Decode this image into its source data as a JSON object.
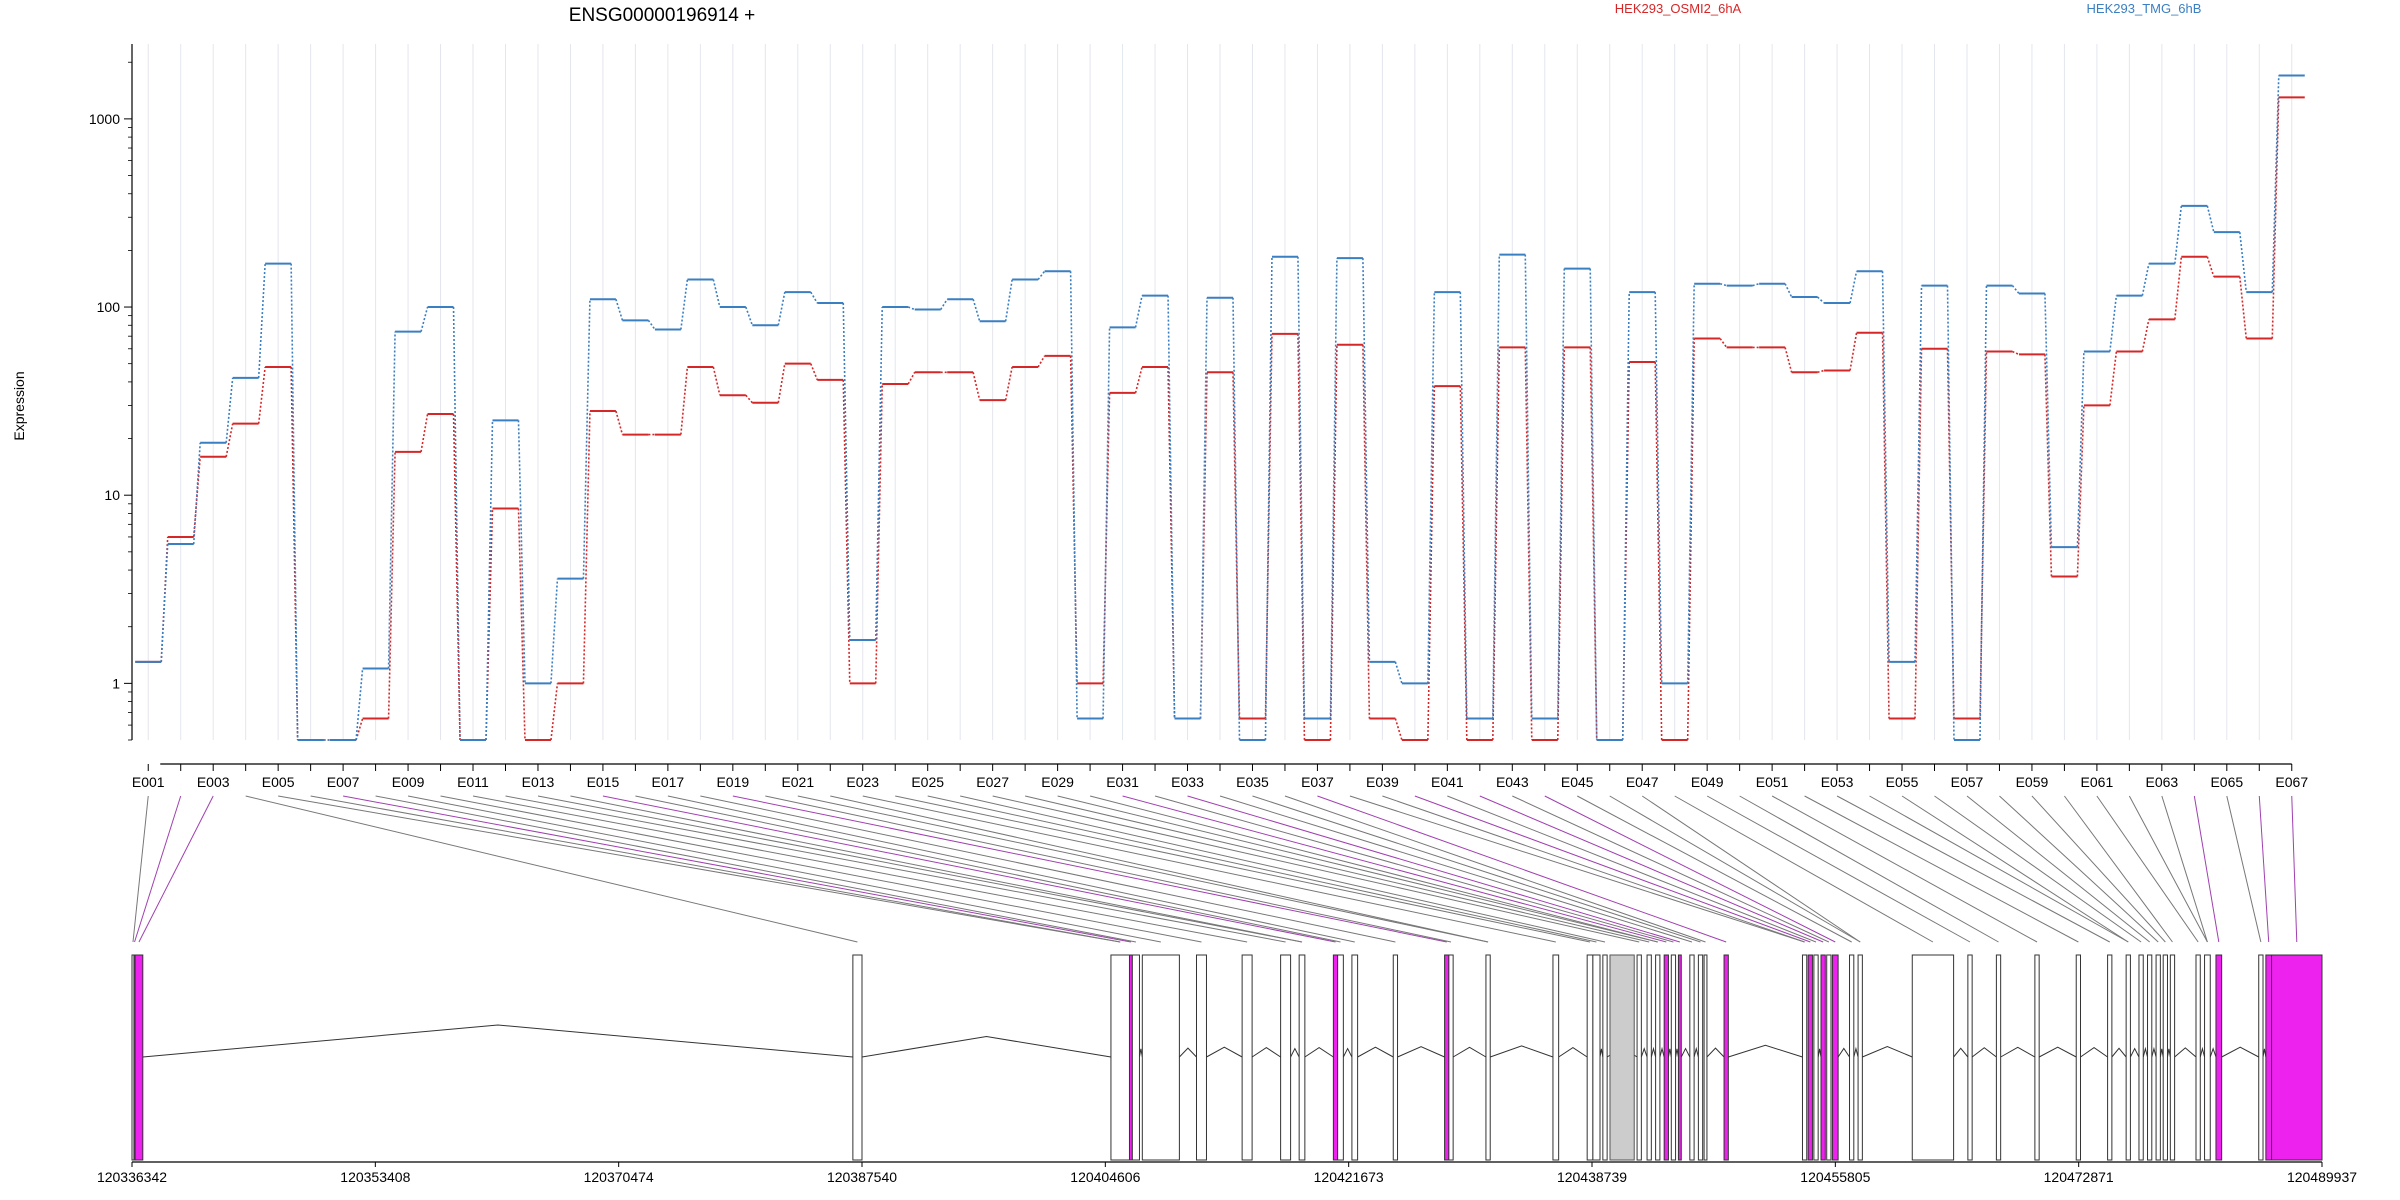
{
  "chart_data": {
    "type": "line",
    "title": "ENSG00000196914 +",
    "ylabel": "Expression",
    "yscale": "log",
    "ylim": [
      0.5,
      2500
    ],
    "yticks": [
      1,
      10,
      100,
      1000
    ],
    "grid": "vertical",
    "legend_position": "top-right",
    "categories": [
      "E001",
      "E002",
      "E003",
      "E004",
      "E005",
      "E006",
      "E007",
      "E008",
      "E009",
      "E010",
      "E011",
      "E012",
      "E013",
      "E014",
      "E015",
      "E016",
      "E017",
      "E018",
      "E019",
      "E020",
      "E021",
      "E022",
      "E023",
      "E024",
      "E025",
      "E026",
      "E027",
      "E028",
      "E029",
      "E030",
      "E031",
      "E032",
      "E033",
      "E034",
      "E035",
      "E036",
      "E037",
      "E038",
      "E039",
      "E040",
      "E041",
      "E042",
      "E043",
      "E044",
      "E045",
      "E046",
      "E047",
      "E048",
      "E049",
      "E050",
      "E051",
      "E052",
      "E053",
      "E054",
      "E055",
      "E056",
      "E057",
      "E058",
      "E059",
      "E060",
      "E061",
      "E062",
      "E063",
      "E064",
      "E065",
      "E066",
      "E067"
    ],
    "tick_labels": [
      "E001",
      "E003",
      "E005",
      "E007",
      "E009",
      "E011",
      "E013",
      "E015",
      "E017",
      "E019",
      "E021",
      "E023",
      "E025",
      "E027",
      "E029",
      "E031",
      "E033",
      "E035",
      "E037",
      "E039",
      "E041",
      "E043",
      "E045",
      "E047",
      "E049",
      "E051",
      "E053",
      "E055",
      "E057",
      "E059",
      "E061",
      "E063",
      "E065",
      "E067"
    ],
    "series": [
      {
        "name": "HEK293_OSMI2_6hA",
        "color": "#d62728",
        "values": [
          1.3,
          6,
          16,
          24,
          48,
          0.5,
          0.5,
          0.65,
          17,
          27,
          0.5,
          8.5,
          0.5,
          1,
          28,
          21,
          21,
          48,
          34,
          31,
          50,
          41,
          1,
          39,
          45,
          45,
          32,
          48,
          55,
          1,
          35,
          48,
          0.65,
          45,
          0.65,
          72,
          0.5,
          63,
          0.65,
          0.5,
          38,
          0.5,
          61,
          0.5,
          61,
          0.5,
          51,
          0.5,
          68,
          61,
          61,
          45,
          46,
          73,
          0.65,
          60,
          0.65,
          58,
          56,
          3.7,
          30,
          58,
          86,
          185,
          145,
          68,
          1300
        ]
      },
      {
        "name": "HEK293_TMG_6hB",
        "color": "#3a7fc1",
        "values": [
          1.3,
          5.5,
          19,
          42,
          170,
          0.5,
          0.5,
          1.2,
          74,
          100,
          0.5,
          25,
          1,
          3.6,
          110,
          85,
          76,
          140,
          100,
          80,
          120,
          105,
          1.7,
          100,
          97,
          110,
          84,
          140,
          155,
          0.65,
          78,
          115,
          0.65,
          112,
          0.5,
          185,
          0.65,
          182,
          1.3,
          1,
          120,
          0.65,
          190,
          0.65,
          160,
          0.5,
          120,
          1,
          133,
          130,
          133,
          113,
          105,
          155,
          1.3,
          130,
          0.5,
          130,
          118,
          5.3,
          58,
          115,
          170,
          345,
          250,
          120,
          1700
        ]
      }
    ]
  },
  "gene_model": {
    "coord_labels": [
      "120336342",
      "120353408",
      "120370474",
      "120387540",
      "120404606",
      "120421673",
      "120438739",
      "120455805",
      "120472871",
      "120489937"
    ],
    "coord_values": [
      120336342,
      120353408,
      120370474,
      120387540,
      120404606,
      120421673,
      120438739,
      120455805,
      120472871,
      120489937
    ],
    "exon_color": "#ffffff",
    "highlight_color": "#ee22ee",
    "neutral_color": "#cccccc",
    "exons": [
      [
        120336342,
        120336480,
        "n"
      ],
      [
        120336480,
        120336560,
        "h"
      ],
      [
        120336560,
        120337100,
        "h"
      ],
      [
        120386900,
        120387540,
        "n"
      ],
      [
        120405000,
        120406300,
        "n"
      ],
      [
        120406300,
        120406500,
        "h"
      ],
      [
        120406500,
        120407000,
        "n"
      ],
      [
        120407200,
        120409800,
        "n"
      ],
      [
        120411000,
        120411700,
        "n"
      ],
      [
        120414200,
        120414900,
        "n"
      ],
      [
        120416900,
        120417600,
        "n"
      ],
      [
        120418200,
        120418600,
        "n"
      ],
      [
        120420600,
        120420900,
        "h"
      ],
      [
        120420900,
        120421300,
        "n"
      ],
      [
        120421900,
        120422300,
        "n"
      ],
      [
        120424800,
        120425100,
        "n"
      ],
      [
        120428400,
        120428700,
        "h"
      ],
      [
        120428700,
        120429000,
        "n"
      ],
      [
        120431300,
        120431600,
        "n"
      ],
      [
        120436000,
        120436400,
        "n"
      ],
      [
        120438400,
        120438800,
        "n"
      ],
      [
        120438800,
        120439300,
        "n"
      ],
      [
        120439500,
        120439800,
        "n"
      ],
      [
        120441900,
        120442200,
        "n"
      ],
      [
        120442600,
        120442900,
        "n"
      ],
      [
        120443200,
        120443500,
        "n"
      ],
      [
        120443800,
        120444100,
        "h"
      ],
      [
        120444300,
        120444600,
        "n"
      ],
      [
        120444800,
        120445000,
        "h"
      ],
      [
        120445600,
        120445900,
        "n"
      ],
      [
        120446200,
        120446500,
        "n"
      ],
      [
        120446600,
        120446800,
        "n"
      ],
      [
        120448000,
        120448300,
        "h"
      ],
      [
        120453500,
        120453800,
        "n"
      ],
      [
        120453900,
        120454200,
        "h"
      ],
      [
        120454300,
        120454600,
        "n"
      ],
      [
        120454800,
        120455100,
        "h"
      ],
      [
        120455200,
        120455500,
        "n"
      ],
      [
        120455600,
        120456000,
        "h"
      ],
      [
        120456800,
        120457100,
        "n"
      ],
      [
        120457400,
        120457700,
        "n"
      ],
      [
        120461200,
        120464100,
        "n"
      ],
      [
        120465100,
        120465400,
        "n"
      ],
      [
        120467100,
        120467400,
        "n"
      ],
      [
        120469800,
        120470100,
        "n"
      ],
      [
        120472700,
        120473000,
        "n"
      ],
      [
        120474900,
        120475200,
        "n"
      ],
      [
        120476200,
        120476500,
        "n"
      ],
      [
        120477100,
        120477400,
        "n"
      ],
      [
        120477700,
        120478000,
        "n"
      ],
      [
        120478300,
        120478600,
        "n"
      ],
      [
        120478800,
        120479100,
        "n"
      ],
      [
        120479300,
        120479600,
        "n"
      ],
      [
        120481100,
        120481400,
        "n"
      ],
      [
        120481700,
        120482100,
        "n"
      ],
      [
        120482500,
        120482900,
        "h"
      ],
      [
        120485500,
        120485800,
        "n"
      ],
      [
        120486000,
        120486400,
        "h"
      ],
      [
        120486400,
        120489937,
        "h"
      ]
    ],
    "gray_block": [
      120440000,
      120441700
    ]
  }
}
